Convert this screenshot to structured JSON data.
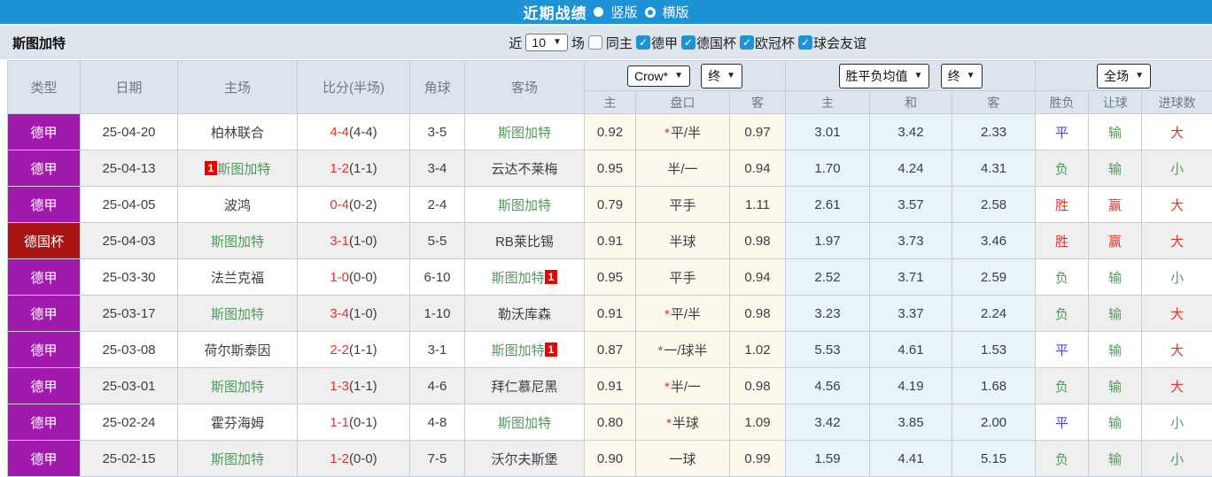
{
  "colors": {
    "accent": "#1d93d6",
    "purple": "#a21aad",
    "darkred": "#a91414",
    "red": "#e0342b",
    "green": "#55975f",
    "blue": "#4747d1",
    "text": "#3a3f44",
    "badge": "#ee0000"
  },
  "topbar": {
    "title": "近期战绩",
    "radios": [
      {
        "label": "竖版",
        "selected": true
      },
      {
        "label": "横版",
        "selected": false
      }
    ]
  },
  "filterbar": {
    "team_name": "斯图加特",
    "near_label": "近",
    "matches_value": "10",
    "games_label": "场",
    "same_home": {
      "label": "同主",
      "checked": false
    },
    "leagues": [
      {
        "label": "德甲",
        "checked": true
      },
      {
        "label": "德国杯",
        "checked": true
      },
      {
        "label": "欧冠杯",
        "checked": true
      },
      {
        "label": "球会友谊",
        "checked": true
      }
    ]
  },
  "table": {
    "header": {
      "col_type": "类型",
      "col_date": "日期",
      "col_home": "主场",
      "col_score": "比分(半场)",
      "col_corner": "角球",
      "col_away": "客场",
      "asia_bookmaker_select": "Crow*",
      "asia_stage_select": "终",
      "europe_bookmaker_select": "胜平负均值",
      "europe_stage_select": "终",
      "scope_select": "全场",
      "sub": [
        "主",
        "盘口",
        "客",
        "主",
        "和",
        "客",
        "胜负",
        "让球",
        "进球数"
      ]
    },
    "rows": [
      {
        "type": "德甲",
        "type_color": "purple",
        "date": "25-04-20",
        "home": {
          "name": "柏林联合",
          "self": false
        },
        "score_full": "4-4",
        "score_half": "(4-4)",
        "corner": "3-5",
        "away": {
          "name": "斯图加特",
          "self": true
        },
        "asia_home": "0.92",
        "asia_star": true,
        "asia_handicap": "平/半",
        "asia_away": "0.97",
        "eu_home": "3.01",
        "eu_draw": "3.42",
        "eu_away": "2.33",
        "res_outcome": {
          "text": "平",
          "color": "blue"
        },
        "res_handicap": {
          "text": "输",
          "color": "green"
        },
        "res_goals": {
          "text": "大",
          "color": "red"
        }
      },
      {
        "type": "德甲",
        "type_color": "purple",
        "date": "25-04-13",
        "home": {
          "name": "斯图加特",
          "self": true,
          "badge": "1",
          "badge_pos": "before"
        },
        "score_full": "1-2",
        "score_half": "(1-1)",
        "corner": "3-4",
        "away": {
          "name": "云达不莱梅",
          "self": false
        },
        "asia_home": "0.95",
        "asia_star": false,
        "asia_handicap": "半/一",
        "asia_away": "0.94",
        "eu_home": "1.70",
        "eu_draw": "4.24",
        "eu_away": "4.31",
        "res_outcome": {
          "text": "负",
          "color": "green"
        },
        "res_handicap": {
          "text": "输",
          "color": "green"
        },
        "res_goals": {
          "text": "小",
          "color": "green"
        }
      },
      {
        "type": "德甲",
        "type_color": "purple",
        "date": "25-04-05",
        "home": {
          "name": "波鸿",
          "self": false
        },
        "score_full": "0-4",
        "score_half": "(0-2)",
        "corner": "2-4",
        "away": {
          "name": "斯图加特",
          "self": true
        },
        "asia_home": "0.79",
        "asia_star": false,
        "asia_handicap": "平手",
        "asia_away": "1.11",
        "eu_home": "2.61",
        "eu_draw": "3.57",
        "eu_away": "2.58",
        "res_outcome": {
          "text": "胜",
          "color": "red"
        },
        "res_handicap": {
          "text": "赢",
          "color": "red"
        },
        "res_goals": {
          "text": "大",
          "color": "red"
        }
      },
      {
        "type": "德国杯",
        "type_color": "darkred",
        "date": "25-04-03",
        "home": {
          "name": "斯图加特",
          "self": true
        },
        "score_full": "3-1",
        "score_half": "(1-0)",
        "corner": "5-5",
        "away": {
          "name": "RB莱比锡",
          "self": false
        },
        "asia_home": "0.91",
        "asia_star": false,
        "asia_handicap": "半球",
        "asia_away": "0.98",
        "eu_home": "1.97",
        "eu_draw": "3.73",
        "eu_away": "3.46",
        "res_outcome": {
          "text": "胜",
          "color": "red"
        },
        "res_handicap": {
          "text": "赢",
          "color": "red"
        },
        "res_goals": {
          "text": "大",
          "color": "red"
        }
      },
      {
        "type": "德甲",
        "type_color": "purple",
        "date": "25-03-30",
        "home": {
          "name": "法兰克福",
          "self": false
        },
        "score_full": "1-0",
        "score_half": "(0-0)",
        "corner": "6-10",
        "away": {
          "name": "斯图加特",
          "self": true,
          "badge": "1",
          "badge_pos": "after"
        },
        "asia_home": "0.95",
        "asia_star": false,
        "asia_handicap": "平手",
        "asia_away": "0.94",
        "eu_home": "2.52",
        "eu_draw": "3.71",
        "eu_away": "2.59",
        "res_outcome": {
          "text": "负",
          "color": "green"
        },
        "res_handicap": {
          "text": "输",
          "color": "green"
        },
        "res_goals": {
          "text": "小",
          "color": "green"
        }
      },
      {
        "type": "德甲",
        "type_color": "purple",
        "date": "25-03-17",
        "home": {
          "name": "斯图加特",
          "self": true
        },
        "score_full": "3-4",
        "score_half": "(1-0)",
        "corner": "1-10",
        "away": {
          "name": "勒沃库森",
          "self": false
        },
        "asia_home": "0.91",
        "asia_star": true,
        "asia_handicap": "平/半",
        "asia_away": "0.98",
        "eu_home": "3.23",
        "eu_draw": "3.37",
        "eu_away": "2.24",
        "res_outcome": {
          "text": "负",
          "color": "green"
        },
        "res_handicap": {
          "text": "输",
          "color": "green"
        },
        "res_goals": {
          "text": "大",
          "color": "red"
        }
      },
      {
        "type": "德甲",
        "type_color": "purple",
        "date": "25-03-08",
        "home": {
          "name": "荷尔斯泰因",
          "self": false
        },
        "score_full": "2-2",
        "score_half": "(1-1)",
        "corner": "3-1",
        "away": {
          "name": "斯图加特",
          "self": true,
          "badge": "1",
          "badge_pos": "after"
        },
        "asia_home": "0.87",
        "asia_star": true,
        "asia_handicap": "一/球半",
        "asia_away": "1.02",
        "eu_home": "5.53",
        "eu_draw": "4.61",
        "eu_away": "1.53",
        "res_outcome": {
          "text": "平",
          "color": "blue"
        },
        "res_handicap": {
          "text": "输",
          "color": "green"
        },
        "res_goals": {
          "text": "大",
          "color": "red"
        }
      },
      {
        "type": "德甲",
        "type_color": "purple",
        "date": "25-03-01",
        "home": {
          "name": "斯图加特",
          "self": true
        },
        "score_full": "1-3",
        "score_half": "(1-1)",
        "corner": "4-6",
        "away": {
          "name": "拜仁慕尼黑",
          "self": false
        },
        "asia_home": "0.91",
        "asia_star": true,
        "asia_handicap": "半/一",
        "asia_away": "0.98",
        "eu_home": "4.56",
        "eu_draw": "4.19",
        "eu_away": "1.68",
        "res_outcome": {
          "text": "负",
          "color": "green"
        },
        "res_handicap": {
          "text": "输",
          "color": "green"
        },
        "res_goals": {
          "text": "大",
          "color": "red"
        }
      },
      {
        "type": "德甲",
        "type_color": "purple",
        "date": "25-02-24",
        "home": {
          "name": "霍芬海姆",
          "self": false
        },
        "score_full": "1-1",
        "score_half": "(0-1)",
        "corner": "4-8",
        "away": {
          "name": "斯图加特",
          "self": true
        },
        "asia_home": "0.80",
        "asia_star": true,
        "asia_handicap": "半球",
        "asia_away": "1.09",
        "eu_home": "3.42",
        "eu_draw": "3.85",
        "eu_away": "2.00",
        "res_outcome": {
          "text": "平",
          "color": "blue"
        },
        "res_handicap": {
          "text": "输",
          "color": "green"
        },
        "res_goals": {
          "text": "小",
          "color": "green"
        }
      },
      {
        "type": "德甲",
        "type_color": "purple",
        "date": "25-02-15",
        "home": {
          "name": "斯图加特",
          "self": true
        },
        "score_full": "1-2",
        "score_half": "(0-0)",
        "corner": "7-5",
        "away": {
          "name": "沃尔夫斯堡",
          "self": false
        },
        "asia_home": "0.90",
        "asia_star": false,
        "asia_handicap": "一球",
        "asia_away": "0.99",
        "eu_home": "1.59",
        "eu_draw": "4.41",
        "eu_away": "5.15",
        "res_outcome": {
          "text": "负",
          "color": "green"
        },
        "res_handicap": {
          "text": "输",
          "color": "green"
        },
        "res_goals": {
          "text": "小",
          "color": "green"
        }
      }
    ]
  }
}
